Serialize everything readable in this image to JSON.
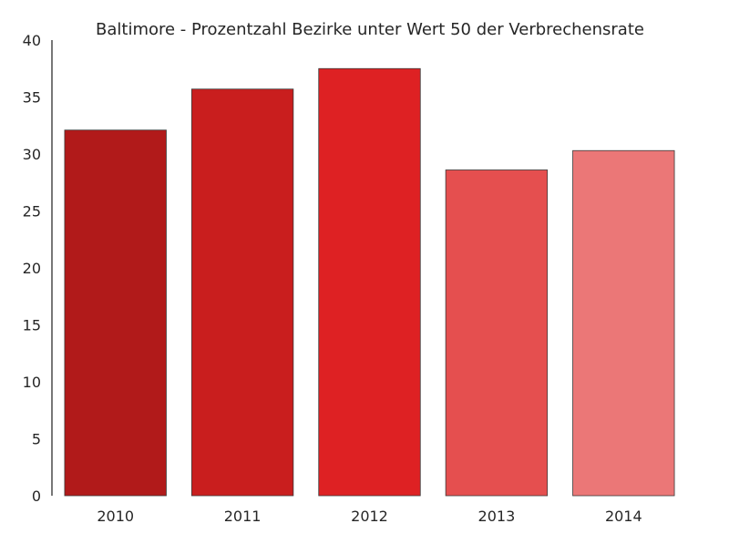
{
  "chart_data": {
    "type": "bar",
    "title": "Baltimore - Prozentzahl Bezirke unter Wert 50 der Verbrechensrate",
    "xlabel": "",
    "ylabel": "",
    "categories": [
      "2010",
      "2011",
      "2012",
      "2013",
      "2014"
    ],
    "values": [
      32.1,
      35.7,
      37.5,
      28.6,
      30.3
    ],
    "colors": [
      "#b11a1a",
      "#c91e1e",
      "#de2123",
      "#e54f4f",
      "#eb7777"
    ],
    "ylim": [
      0,
      40
    ],
    "yticks": [
      0,
      5,
      10,
      15,
      20,
      25,
      30,
      35,
      40
    ],
    "grid": false
  }
}
